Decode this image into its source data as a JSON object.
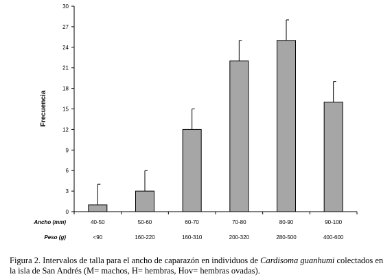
{
  "chart_data": {
    "type": "bar",
    "ylabel": "Frecuencia",
    "ylim": [
      0,
      30
    ],
    "yticks": [
      0,
      3,
      6,
      9,
      12,
      15,
      18,
      21,
      24,
      27,
      30
    ],
    "categories": [
      "40-50",
      "50-60",
      "60-70",
      "70-80",
      "80-90",
      "90-100"
    ],
    "values": [
      1,
      3,
      12,
      22,
      25,
      16
    ],
    "error_upper": [
      4,
      6,
      15,
      25,
      28,
      19
    ],
    "x_rows": [
      {
        "label": "Ancho (mm)",
        "values": [
          "40-50",
          "50-60",
          "60-70",
          "70-80",
          "80-90",
          "90-100"
        ]
      },
      {
        "label": "Peso (g)",
        "values": [
          "<90",
          "160-220",
          "160-310",
          "200-320",
          "280-500",
          "400-600"
        ]
      }
    ],
    "bar_color": "#a6a6a6",
    "grid": false,
    "legend": "none"
  },
  "caption": {
    "prefix": "Figura 2. Intervalos de talla para el ancho de caparazón en individuos de ",
    "species": "Cardisoma guanhumi",
    "suffix": " colectados en la isla de San Andrés (M= machos, H= hembras, Hov= hembras ovadas)."
  }
}
